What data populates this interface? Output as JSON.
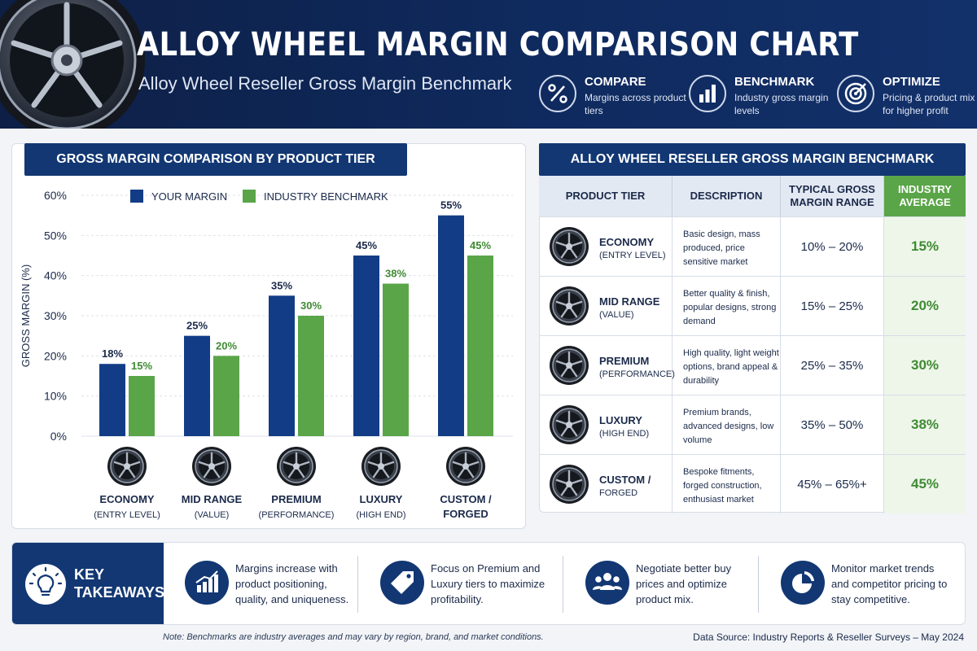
{
  "header": {
    "title": "ALLOY WHEEL MARGIN COMPARISON CHART",
    "subtitle": "Alloy Wheel Reseller Gross Margin Benchmark",
    "features": [
      {
        "icon": "percent-icon",
        "title": "COMPARE",
        "desc": "Margins across product tiers"
      },
      {
        "icon": "bar-chart-icon",
        "title": "BENCHMARK",
        "desc": "Industry gross margin levels"
      },
      {
        "icon": "target-icon",
        "title": "OPTIMIZE",
        "desc": "Pricing & product mix for higher profit"
      }
    ]
  },
  "chart_panel": {
    "banner": "GROSS MARGIN COMPARISON BY PRODUCT TIER"
  },
  "chart_data": {
    "type": "bar",
    "title": "GROSS MARGIN COMPARISON BY PRODUCT TIER",
    "ylabel": "GROSS MARGIN (%)",
    "ylim": [
      0,
      60
    ],
    "yticks": [
      "0%",
      "10%",
      "20%",
      "30%",
      "40%",
      "50%",
      "60%"
    ],
    "legend": "top",
    "grid": true,
    "categories": [
      {
        "name": "ECONOMY",
        "sub": "(ENTRY LEVEL)"
      },
      {
        "name": "MID RANGE",
        "sub": "(VALUE)"
      },
      {
        "name": "PREMIUM",
        "sub": "(PERFORMANCE)"
      },
      {
        "name": "LUXURY",
        "sub": "(HIGH END)"
      },
      {
        "name": "CUSTOM /",
        "sub": "FORGED"
      }
    ],
    "series": [
      {
        "name": "YOUR MARGIN",
        "color": "#123d86",
        "label_color": "#1b2a4a",
        "values": [
          18,
          25,
          35,
          45,
          55
        ]
      },
      {
        "name": "INDUSTRY BENCHMARK",
        "color": "#5aa548",
        "label_color": "#3f8a33",
        "values": [
          15,
          20,
          30,
          38,
          45
        ]
      }
    ]
  },
  "table": {
    "banner": "ALLOY WHEEL RESELLER GROSS MARGIN BENCHMARK",
    "headers": [
      "PRODUCT TIER",
      "DESCRIPTION",
      "TYPICAL GROSS MARGIN RANGE",
      "INDUSTRY AVERAGE"
    ],
    "rows": [
      {
        "tier": "ECONOMY",
        "sub": "(ENTRY LEVEL)",
        "desc": "Basic design, mass produced, price sensitive market",
        "range": "10% – 20%",
        "avg": "15%"
      },
      {
        "tier": "MID RANGE",
        "sub": "(VALUE)",
        "desc": "Better quality & finish, popular designs, strong demand",
        "range": "15% – 25%",
        "avg": "20%"
      },
      {
        "tier": "PREMIUM",
        "sub": "(PERFORMANCE)",
        "desc": "High quality, light weight options, brand appeal & durability",
        "range": "25% – 35%",
        "avg": "30%"
      },
      {
        "tier": "LUXURY",
        "sub": "(HIGH END)",
        "desc": "Premium brands, advanced designs, low volume",
        "range": "35% – 50%",
        "avg": "38%"
      },
      {
        "tier": "CUSTOM /",
        "sub": "FORGED",
        "desc": "Bespoke fitments, forged construction, enthusiast market",
        "range": "45% – 65%+",
        "avg": "45%"
      }
    ]
  },
  "takeaways": {
    "label": "KEY TAKEAWAYS",
    "items": [
      {
        "icon": "growth-chart-icon",
        "text": "Margins increase with product positioning, quality, and uniqueness."
      },
      {
        "icon": "price-tag-icon",
        "text": "Focus on Premium and Luxury tiers to maximize profitability."
      },
      {
        "icon": "people-icon",
        "text": "Negotiate better buy prices and optimize product mix."
      },
      {
        "icon": "pie-chart-icon",
        "text": "Monitor market trends and competitor pricing to stay competitive."
      }
    ]
  },
  "footer": {
    "note": "Note: Benchmarks are industry averages and may vary by region, brand, and market conditions.",
    "source": "Data Source: Industry Reports & Reseller Surveys – May 2024"
  }
}
